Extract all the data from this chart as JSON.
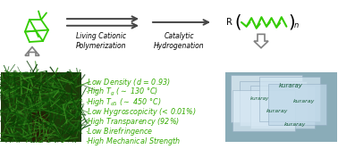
{
  "bg_color": "#ffffff",
  "green": "#33cc00",
  "arrow_color": "#444444",
  "text_color": "#33aa00",
  "label1": "Living Cationic\nPolymerization",
  "label2": "Catalytic\nHydrogenation",
  "pine_bg": "#1a4a0a",
  "film_bg": "#b0c8d0",
  "props": [
    "\\u00b7Low Density (d = 0.93)",
    "\\u00b7High T_g (\\u223c 130 \\u00b0C)",
    "\\u00b7High T_d5 (\\u223c 450 \\u00b0C)",
    "\\u00b7Low Hygroscopicity (< 0.01%)",
    "\\u00b7High Transparency (92%)",
    "\\u00b7Low Birefringence",
    "\\u00b7High Mechanical Strength"
  ]
}
